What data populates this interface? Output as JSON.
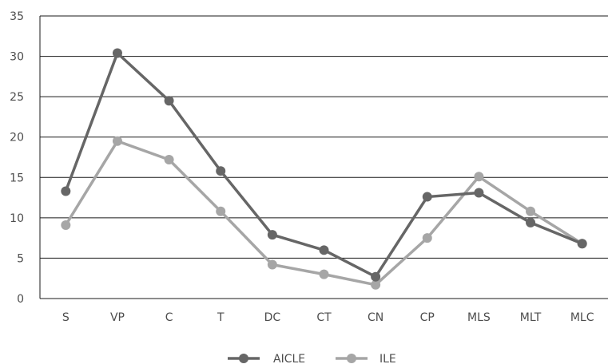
{
  "chart_data": {
    "type": "line",
    "title": "",
    "xlabel": "",
    "ylabel": "",
    "categories": [
      "S",
      "VP",
      "C",
      "T",
      "DC",
      "CT",
      "CN",
      "CP",
      "MLS",
      "MLT",
      "MLC"
    ],
    "ylim": [
      0,
      35
    ],
    "yticks": [
      0,
      5,
      10,
      15,
      20,
      25,
      30,
      35
    ],
    "grid": true,
    "legend_position": "bottom",
    "series": [
      {
        "name": "AICLE",
        "color": "#666666",
        "values": [
          13.3,
          30.4,
          24.5,
          15.8,
          7.9,
          6.0,
          2.7,
          12.6,
          13.1,
          9.4,
          6.8
        ]
      },
      {
        "name": "ILE",
        "color": "#a6a6a6",
        "values": [
          9.1,
          19.5,
          17.2,
          10.8,
          4.2,
          3.0,
          1.7,
          7.5,
          15.1,
          10.8,
          6.8
        ]
      }
    ]
  }
}
